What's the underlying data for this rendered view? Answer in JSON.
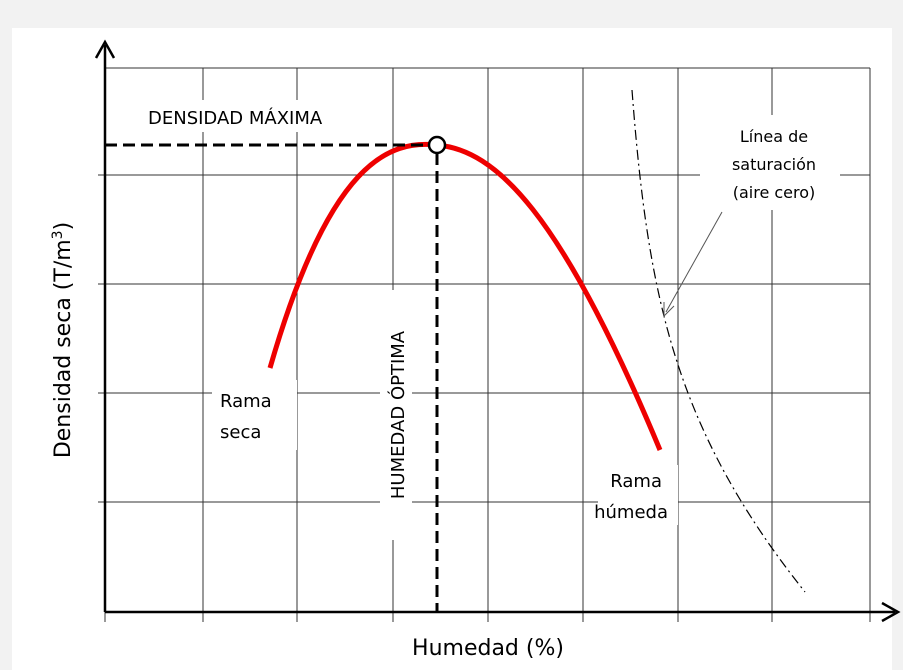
{
  "labels": {
    "max_density": "DENSIDAD MÁXIMA",
    "optimum_moisture": "HUMEDAD ÓPTIMA",
    "dry_branch": [
      "Rama",
      "seca"
    ],
    "wet_branch": [
      "Rama",
      "húmeda"
    ],
    "saturation_line": [
      "Línea de",
      "saturación",
      "(aire cero)"
    ],
    "y_axis": {
      "main": "Densidad seca (T/m",
      "sup": "3",
      "end": ")"
    },
    "x_axis": "Humedad (%)"
  }
}
